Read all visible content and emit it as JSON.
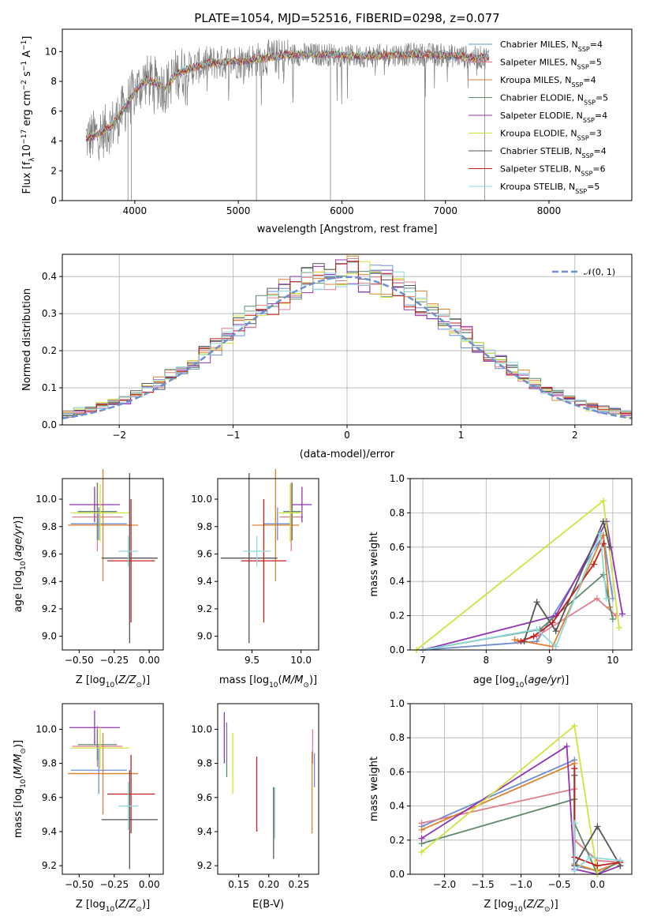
{
  "figure": {
    "title": "PLATE=1054, MJD=52516, FIBERID=0298, z=0.077"
  },
  "colors": {
    "Chabrier MILES": "#6f8fd0",
    "Salpeter MILES": "#e07f8c",
    "Kroupa MILES": "#e0802e",
    "Chabrier ELODIE": "#5f8a6a",
    "Salpeter ELODIE": "#9134b5",
    "Kroupa ELODIE": "#cfe33e",
    "Chabrier STELIB": "#555555",
    "Salpeter STELIB": "#c31f1f",
    "Kroupa STELIB": "#8fd8dc",
    "data": "#808080",
    "normal": "#6f8fd0"
  },
  "chart_data": [
    {
      "id": "spectrum",
      "type": "line",
      "xlabel": "wavelength [Angstrom, rest frame]",
      "ylabel": "Flux [f_λ10^-17 erg cm^-2 s^-1 A^-1]",
      "xlim": [
        3300,
        8800
      ],
      "ylim": [
        0,
        11.5
      ],
      "xticks": [
        4000,
        5000,
        6000,
        7000,
        8000
      ],
      "yticks": [
        0,
        2,
        4,
        6,
        8,
        10
      ],
      "legend_position": "upper right",
      "legend": [
        {
          "name": "Chabrier MILES",
          "nssp": "4"
        },
        {
          "name": "Salpeter MILES",
          "nssp": "5"
        },
        {
          "name": "Kroupa MILES",
          "nssp": "4"
        },
        {
          "name": "Chabrier ELODIE",
          "nssp": "5"
        },
        {
          "name": "Salpeter ELODIE",
          "nssp": "4"
        },
        {
          "name": "Kroupa ELODIE",
          "nssp": "3"
        },
        {
          "name": "Chabrier STELIB",
          "nssp": "4"
        },
        {
          "name": "Salpeter STELIB",
          "nssp": "6"
        },
        {
          "name": "Kroupa STELIB",
          "nssp": "5"
        }
      ],
      "continuum": {
        "x": [
          3550,
          3700,
          3800,
          3900,
          4000,
          4100,
          4200,
          4300,
          4400,
          4500,
          4700,
          4900,
          5100,
          5300,
          5500,
          5700,
          5900,
          6100,
          6300,
          6500,
          6700,
          6900,
          7100,
          7300,
          7420
        ],
        "y": [
          4.2,
          4.6,
          5.2,
          6.2,
          7.3,
          8.1,
          7.9,
          7.6,
          8.5,
          8.8,
          9.2,
          9.3,
          9.4,
          9.6,
          9.8,
          9.8,
          9.8,
          9.7,
          9.7,
          9.8,
          9.8,
          9.8,
          9.7,
          9.6,
          9.6
        ]
      },
      "data_range": [
        3530,
        7420
      ],
      "absorption_spikes": [
        3934,
        3968,
        5175,
        5890,
        6800,
        7380
      ]
    },
    {
      "id": "residuals",
      "type": "bar",
      "xlabel": "(data-model)/error",
      "ylabel": "Normed distribution",
      "xlim": [
        -2.5,
        2.5
      ],
      "ylim": [
        0,
        0.46
      ],
      "xticks": [
        -2,
        -1,
        0,
        1,
        2
      ],
      "yticks": [
        0.0,
        0.1,
        0.2,
        0.3,
        0.4
      ],
      "legend_position": "upper right",
      "legend": [
        "𝒩(0, 1)"
      ],
      "bin_width": 0.1
    },
    {
      "id": "age-vs-Z",
      "type": "errorbar",
      "xlabel": "Z [log10(Z/Z⊙)]",
      "ylabel": "age  [log10(age/yr)]",
      "xlim": [
        -0.62,
        0.1
      ],
      "ylim": [
        8.9,
        10.15
      ],
      "xticks": [
        -0.5,
        -0.25,
        0.0
      ],
      "xticklabels": [
        "−0.50",
        "−0.25",
        "0.00"
      ],
      "yticks": [
        9.0,
        9.2,
        9.4,
        9.6,
        9.8,
        10.0
      ],
      "points": [
        {
          "model": "Chabrier MILES",
          "x": -0.36,
          "xerr": 0.2,
          "y": 9.82,
          "yerr": 0.12
        },
        {
          "model": "Salpeter MILES",
          "x": -0.37,
          "xerr": 0.18,
          "y": 9.87,
          "yerr": 0.25
        },
        {
          "model": "Kroupa MILES",
          "x": -0.33,
          "xerr": 0.25,
          "y": 9.81,
          "yerr": 0.41
        },
        {
          "model": "Chabrier ELODIE",
          "x": -0.37,
          "xerr": 0.14,
          "y": 9.91,
          "yerr": 0.21
        },
        {
          "model": "Salpeter ELODIE",
          "x": -0.39,
          "xerr": 0.18,
          "y": 9.96,
          "yerr": 0.13
        },
        {
          "model": "Kroupa ELODIE",
          "x": -0.35,
          "xerr": 0.21,
          "y": 9.9,
          "yerr": 0.21
        },
        {
          "model": "Chabrier STELIB",
          "x": -0.14,
          "xerr": 0.2,
          "y": 9.57,
          "yerr": 0.62
        },
        {
          "model": "Salpeter STELIB",
          "x": -0.13,
          "xerr": 0.17,
          "y": 9.55,
          "yerr": 0.45
        },
        {
          "model": "Kroupa STELIB",
          "x": -0.15,
          "xerr": 0.07,
          "y": 9.62,
          "yerr": 0.11
        }
      ]
    },
    {
      "id": "age-vs-mass",
      "type": "errorbar",
      "xlabel": "mass [log10(M/M⊙)]",
      "ylabel": "",
      "xlim": [
        9.15,
        10.18
      ],
      "ylim": [
        8.9,
        10.15
      ],
      "xticks": [
        9.5,
        10.0
      ],
      "yticks": [
        9.0,
        9.2,
        9.4,
        9.6,
        9.8,
        10.0
      ],
      "points": [
        {
          "model": "Chabrier MILES",
          "x": 9.76,
          "xerr": 0.14,
          "y": 9.82,
          "yerr": 0.12
        },
        {
          "model": "Salpeter MILES",
          "x": 9.9,
          "xerr": 0.12,
          "y": 9.87,
          "yerr": 0.25
        },
        {
          "model": "Kroupa MILES",
          "x": 9.74,
          "xerr": 0.24,
          "y": 9.81,
          "yerr": 0.41
        },
        {
          "model": "Chabrier ELODIE",
          "x": 9.91,
          "xerr": 0.09,
          "y": 9.91,
          "yerr": 0.21
        },
        {
          "model": "Salpeter ELODIE",
          "x": 10.01,
          "xerr": 0.1,
          "y": 9.96,
          "yerr": 0.13
        },
        {
          "model": "Kroupa ELODIE",
          "x": 9.89,
          "xerr": 0.12,
          "y": 9.9,
          "yerr": 0.21
        },
        {
          "model": "Chabrier STELIB",
          "x": 9.47,
          "xerr": 0.29,
          "y": 9.57,
          "yerr": 0.62
        },
        {
          "model": "Salpeter STELIB",
          "x": 9.62,
          "xerr": 0.23,
          "y": 9.55,
          "yerr": 0.45
        },
        {
          "model": "Kroupa STELIB",
          "x": 9.55,
          "xerr": 0.14,
          "y": 9.62,
          "yerr": 0.11
        }
      ]
    },
    {
      "id": "mass-vs-Z",
      "type": "errorbar",
      "xlabel": "Z [log10(Z/Z⊙)]",
      "ylabel": "mass [log10(M/M⊙)]",
      "xlim": [
        -0.62,
        0.1
      ],
      "ylim": [
        9.15,
        10.15
      ],
      "xticks": [
        -0.5,
        -0.25,
        0.0
      ],
      "xticklabels": [
        "−0.50",
        "−0.25",
        "0.00"
      ],
      "yticks": [
        9.2,
        9.4,
        9.6,
        9.8,
        10.0
      ],
      "points": [
        {
          "model": "Chabrier MILES",
          "x": -0.36,
          "xerr": 0.2,
          "y": 9.76,
          "yerr": 0.14
        },
        {
          "model": "Salpeter MILES",
          "x": -0.37,
          "xerr": 0.18,
          "y": 9.9,
          "yerr": 0.12
        },
        {
          "model": "Kroupa MILES",
          "x": -0.33,
          "xerr": 0.25,
          "y": 9.74,
          "yerr": 0.24
        },
        {
          "model": "Chabrier ELODIE",
          "x": -0.37,
          "xerr": 0.14,
          "y": 9.91,
          "yerr": 0.09
        },
        {
          "model": "Salpeter ELODIE",
          "x": -0.39,
          "xerr": 0.18,
          "y": 10.01,
          "yerr": 0.1
        },
        {
          "model": "Kroupa ELODIE",
          "x": -0.35,
          "xerr": 0.21,
          "y": 9.89,
          "yerr": 0.12
        },
        {
          "model": "Chabrier STELIB",
          "x": -0.14,
          "xerr": 0.2,
          "y": 9.47,
          "yerr": 0.29
        },
        {
          "model": "Salpeter STELIB",
          "x": -0.13,
          "xerr": 0.17,
          "y": 9.62,
          "yerr": 0.23
        },
        {
          "model": "Kroupa STELIB",
          "x": -0.15,
          "xerr": 0.07,
          "y": 9.55,
          "yerr": 0.14
        }
      ]
    },
    {
      "id": "mass-vs-ebv",
      "type": "errorbar",
      "xlabel": "E(B-V)",
      "ylabel": "",
      "xlim": [
        0.115,
        0.283
      ],
      "ylim": [
        9.15,
        10.15
      ],
      "xticks": [
        0.15,
        0.2,
        0.25
      ],
      "yticks": [
        9.2,
        9.4,
        9.6,
        9.8,
        10.0
      ],
      "points": [
        {
          "model": "Chabrier MILES",
          "x": 0.276,
          "y": 9.76,
          "yerr": 0.1
        },
        {
          "model": "Salpeter MILES",
          "x": 0.273,
          "y": 9.9,
          "yerr": 0.1
        },
        {
          "model": "Kroupa MILES",
          "x": 0.272,
          "y": 9.63,
          "yerr": 0.24
        },
        {
          "model": "Chabrier ELODIE",
          "x": 0.13,
          "y": 9.88,
          "yerr": 0.16
        },
        {
          "model": "Salpeter ELODIE",
          "x": 0.126,
          "y": 9.95,
          "yerr": 0.15
        },
        {
          "model": "Kroupa ELODIE",
          "x": 0.14,
          "y": 9.8,
          "yerr": 0.18
        },
        {
          "model": "Chabrier STELIB",
          "x": 0.208,
          "y": 9.45,
          "yerr": 0.21
        },
        {
          "model": "Salpeter STELIB",
          "x": 0.18,
          "y": 9.62,
          "yerr": 0.22
        },
        {
          "model": "Kroupa STELIB",
          "x": 0.21,
          "y": 9.51,
          "yerr": 0.15
        }
      ]
    },
    {
      "id": "massweight-vs-age",
      "type": "line",
      "xlabel": "age  [log10(age/yr)]",
      "ylabel": "mass weight",
      "xlim": [
        6.8,
        10.3
      ],
      "ylim": [
        0,
        1.0
      ],
      "xticks": [
        7,
        8,
        9,
        10
      ],
      "yticks": [
        0.0,
        0.2,
        0.4,
        0.6,
        0.8,
        1.0
      ],
      "series": [
        {
          "name": "Chabrier MILES",
          "x": [
            7.0,
            8.8,
            9.85,
            10.0
          ],
          "y": [
            0.0,
            0.05,
            0.67,
            0.3
          ]
        },
        {
          "name": "Salpeter MILES",
          "x": [
            8.5,
            8.8,
            9.75,
            10.05
          ],
          "y": [
            0.05,
            0.08,
            0.3,
            0.2
          ]
        },
        {
          "name": "Kroupa MILES",
          "x": [
            8.45,
            9.05,
            9.85,
            9.95
          ],
          "y": [
            0.06,
            0.02,
            0.67,
            0.25
          ]
        },
        {
          "name": "Chabrier ELODIE",
          "x": [
            7.0,
            8.85,
            9.85,
            10.0
          ],
          "y": [
            0.0,
            0.12,
            0.44,
            0.18
          ]
        },
        {
          "name": "Salpeter ELODIE",
          "x": [
            7.0,
            9.1,
            9.9,
            10.15
          ],
          "y": [
            0.0,
            0.2,
            0.75,
            0.21
          ]
        },
        {
          "name": "Kroupa ELODIE",
          "x": [
            6.9,
            9.85,
            10.1
          ],
          "y": [
            0.0,
            0.87,
            0.13
          ]
        },
        {
          "name": "Chabrier STELIB",
          "x": [
            8.6,
            8.8,
            9.1,
            9.85,
            9.95
          ],
          "y": [
            0.05,
            0.28,
            0.11,
            0.75,
            0.6
          ]
        },
        {
          "name": "Salpeter STELIB",
          "x": [
            8.55,
            8.75,
            9.05,
            9.7,
            9.85
          ],
          "y": [
            0.05,
            0.08,
            0.16,
            0.5,
            0.62
          ]
        },
        {
          "name": "Kroupa STELIB",
          "x": [
            7.0,
            8.8,
            9.1,
            9.8,
            9.9
          ],
          "y": [
            0.0,
            0.12,
            0.02,
            0.68,
            0.3
          ]
        }
      ]
    },
    {
      "id": "massweight-vs-Z",
      "type": "line",
      "xlabel": "Z [log10(Z/Z⊙)]",
      "ylabel": "mass weight",
      "xlim": [
        -2.45,
        0.45
      ],
      "ylim": [
        0,
        1.0
      ],
      "xticks": [
        -2.0,
        -1.5,
        -1.0,
        -0.5,
        0.0
      ],
      "xticklabels": [
        "−2.0",
        "−1.5",
        "−1.0",
        "−0.5",
        "0.0"
      ],
      "yticks": [
        0.0,
        0.2,
        0.4,
        0.6,
        0.8,
        1.0
      ],
      "series": [
        {
          "name": "Chabrier MILES",
          "x": [
            -2.3,
            -0.3,
            -0.3,
            0.0,
            0.3
          ],
          "y": [
            0.28,
            0.67,
            0.05,
            0.02,
            0.07
          ]
        },
        {
          "name": "Salpeter MILES",
          "x": [
            -2.3,
            -0.3,
            -0.3,
            0.0,
            0.3
          ],
          "y": [
            0.3,
            0.5,
            0.2,
            0.08,
            0.07
          ]
        },
        {
          "name": "Kroupa MILES",
          "x": [
            -2.3,
            -0.3,
            -0.3,
            0.0,
            0.3
          ],
          "y": [
            0.26,
            0.65,
            0.06,
            0.02,
            0.07
          ]
        },
        {
          "name": "Chabrier ELODIE",
          "x": [
            -2.3,
            -0.3,
            -0.3,
            0.0,
            0.3
          ],
          "y": [
            0.18,
            0.44,
            0.3,
            0.0,
            0.08
          ]
        },
        {
          "name": "Salpeter ELODIE",
          "x": [
            -2.3,
            -0.4,
            -0.3,
            0.0,
            0.3
          ],
          "y": [
            0.21,
            0.75,
            0.03,
            0.0,
            0.05
          ]
        },
        {
          "name": "Kroupa ELODIE",
          "x": [
            -2.3,
            -0.3,
            0.0
          ],
          "y": [
            0.13,
            0.87,
            0.0
          ]
        },
        {
          "name": "Chabrier STELIB",
          "x": [
            -0.3,
            -0.3,
            0.0,
            0.3
          ],
          "y": [
            0.58,
            0.05,
            0.28,
            0.05
          ]
        },
        {
          "name": "Salpeter STELIB",
          "x": [
            -0.3,
            -0.3,
            0.0,
            0.3
          ],
          "y": [
            0.62,
            0.1,
            0.05,
            0.07
          ]
        },
        {
          "name": "Kroupa STELIB",
          "x": [
            -0.3,
            -0.3,
            -0.1,
            0.3
          ],
          "y": [
            0.3,
            0.02,
            0.1,
            0.08
          ]
        }
      ]
    }
  ]
}
